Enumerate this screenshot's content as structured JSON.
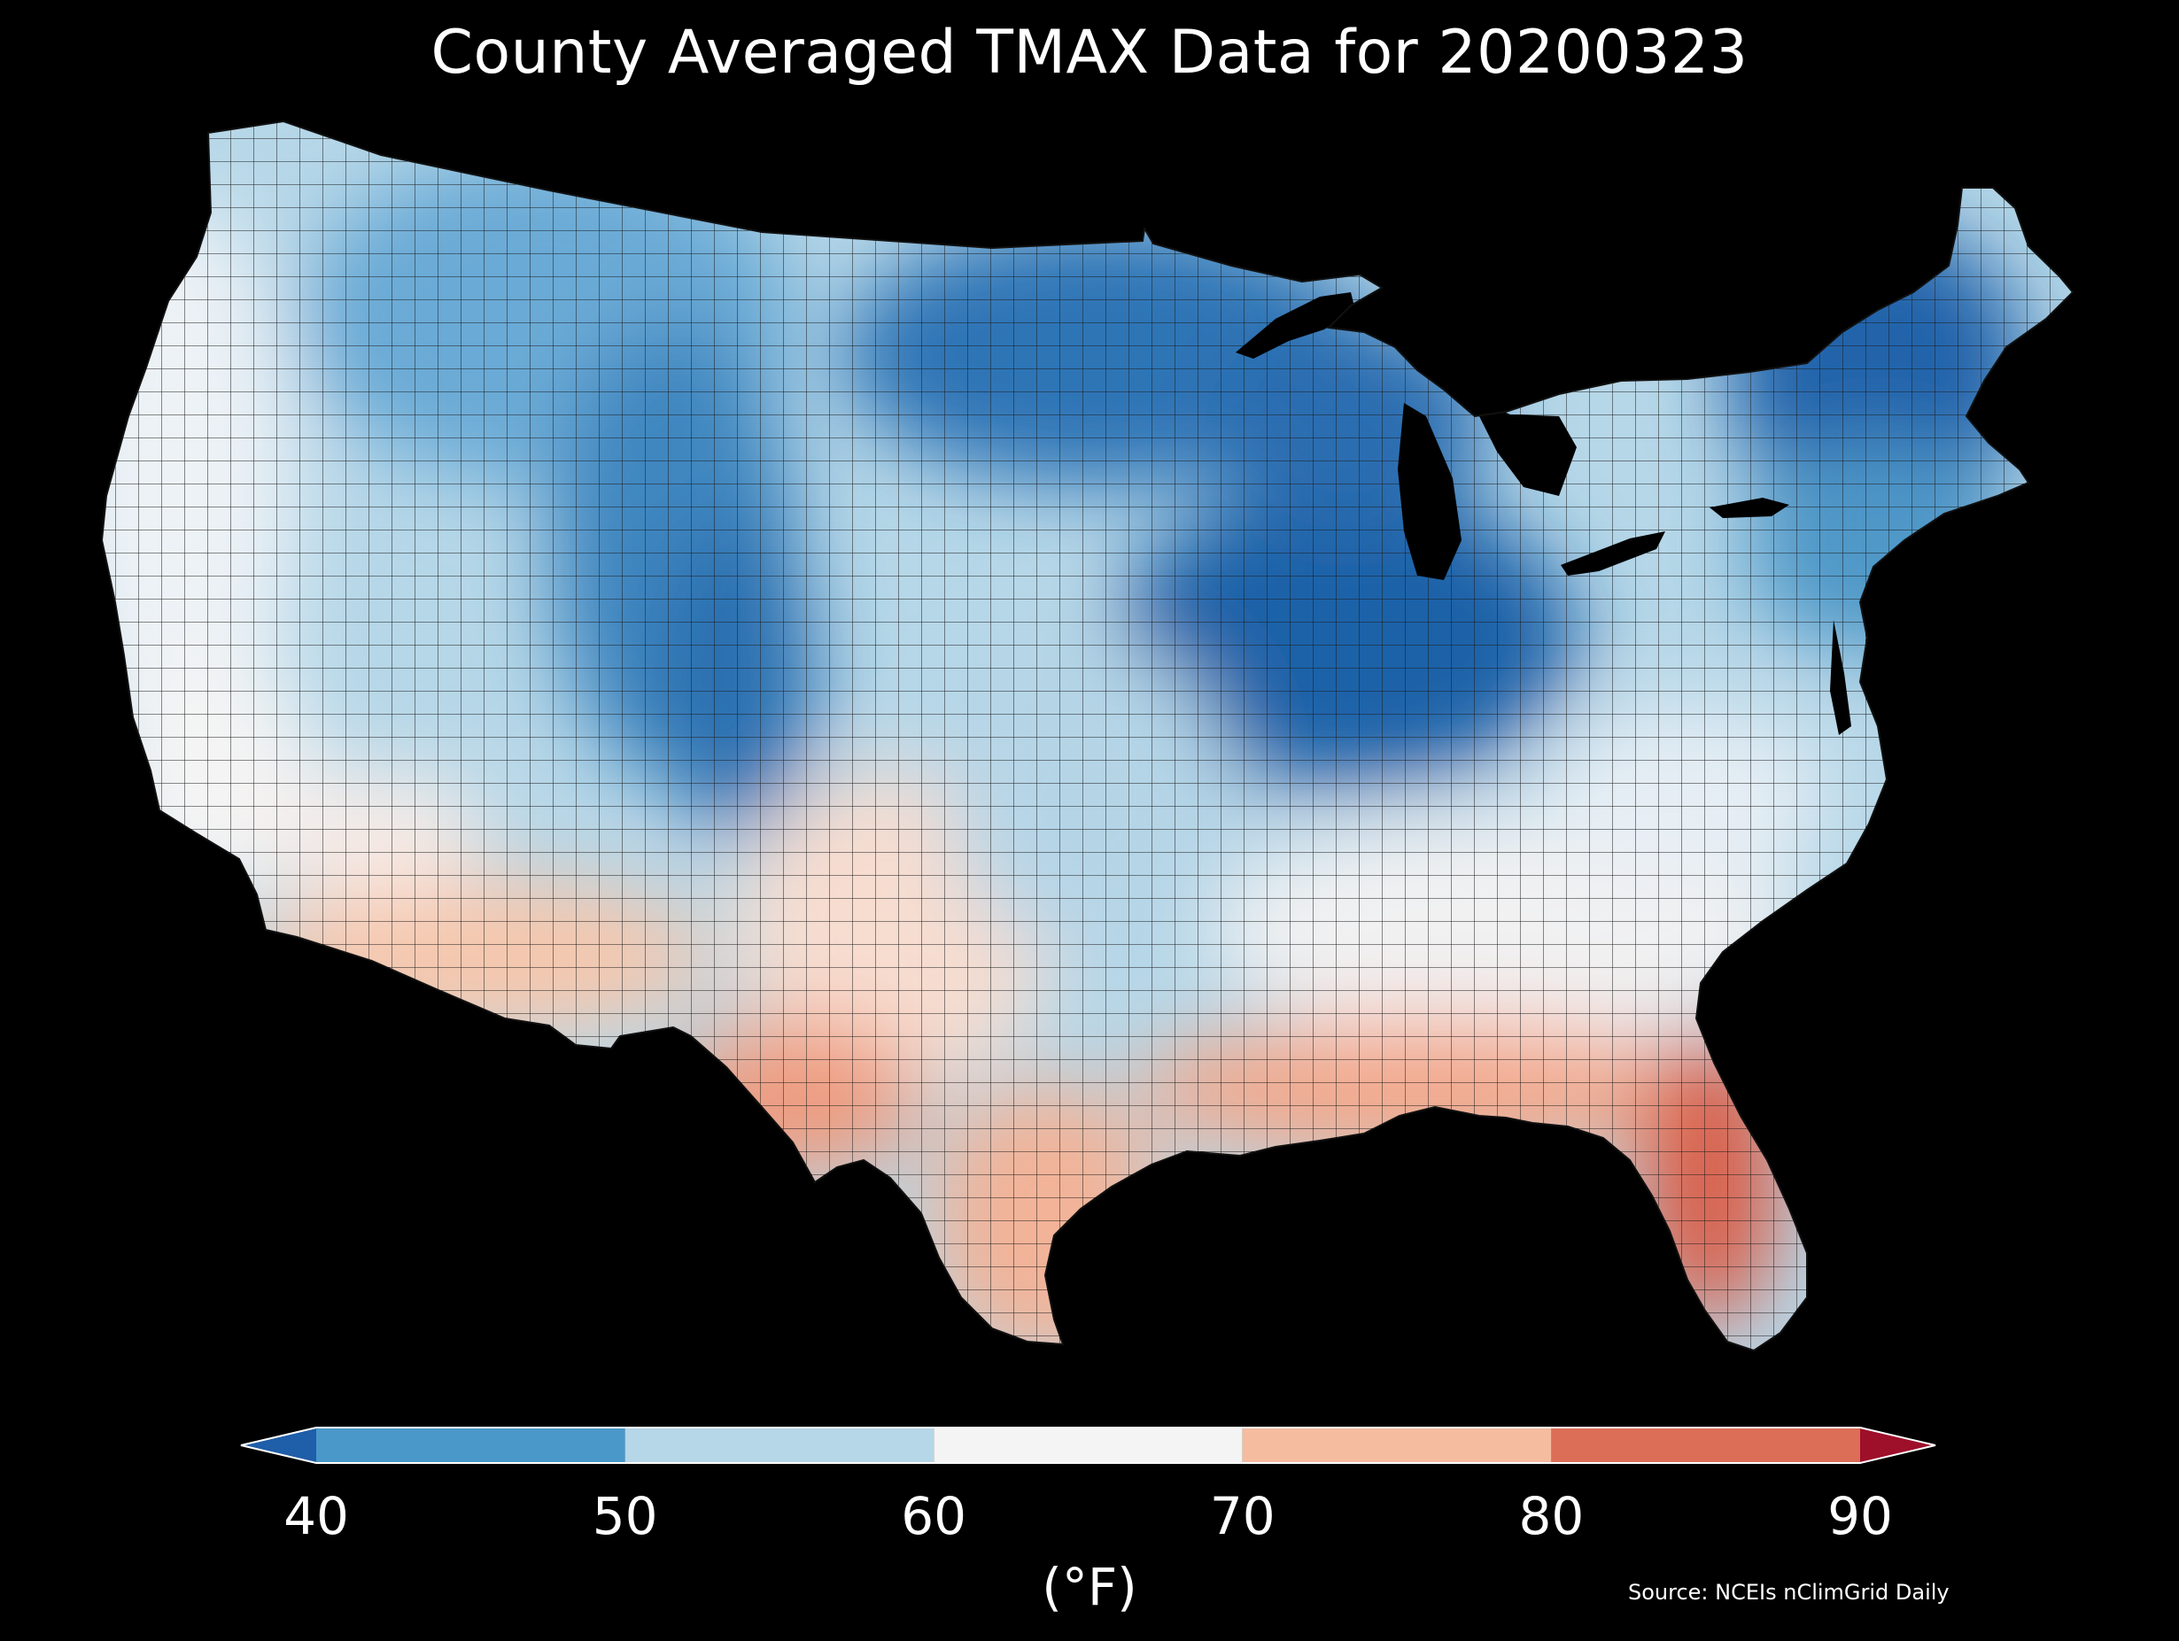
{
  "title": "County Averaged TMAX Data for 20200323",
  "colorbar": {
    "label": "(°F)",
    "ticks": [
      "40",
      "50",
      "60",
      "70",
      "80",
      "90"
    ],
    "bins": [
      {
        "range": "<40",
        "color": "#1f5ea8"
      },
      {
        "range": "40-50",
        "color": "#4a98c9"
      },
      {
        "range": "50-60",
        "color": "#b6d7e8"
      },
      {
        "range": "60-70",
        "color": "#f4f4f4"
      },
      {
        "range": "70-80",
        "color": "#f6bca0"
      },
      {
        "range": "80-90",
        "color": "#dc6e57"
      },
      {
        "range": ">90",
        "color": "#9e0f2a"
      }
    ],
    "extend": "both"
  },
  "source": "Source: NCEIs nClimGrid Daily",
  "map": {
    "region": "Contiguous United States",
    "unit": "counties",
    "variable": "TMAX",
    "background_color": "#000000",
    "regional_pattern": [
      {
        "region": "Pacific coast",
        "bin": "60-70"
      },
      {
        "region": "Great Basin / Intermountain West",
        "bin": "50-60"
      },
      {
        "region": "Rocky Mountains (Colorado/Wyoming)",
        "bin": "40-50"
      },
      {
        "region": "Desert Southwest",
        "bin": "70-80"
      },
      {
        "region": "Southern Plains / Texas",
        "bin": "70-80"
      },
      {
        "region": "Central Plains",
        "bin": "50-60"
      },
      {
        "region": "Upper Midwest / Great Lakes",
        "bin": "<40"
      },
      {
        "region": "Northeast / New England",
        "bin": "<40"
      },
      {
        "region": "Mid-Atlantic",
        "bin": "50-60"
      },
      {
        "region": "Southeast interior",
        "bin": "60-70"
      },
      {
        "region": "Gulf Coast",
        "bin": "70-80"
      },
      {
        "region": "Florida peninsula",
        "bin": "80-90"
      }
    ]
  }
}
